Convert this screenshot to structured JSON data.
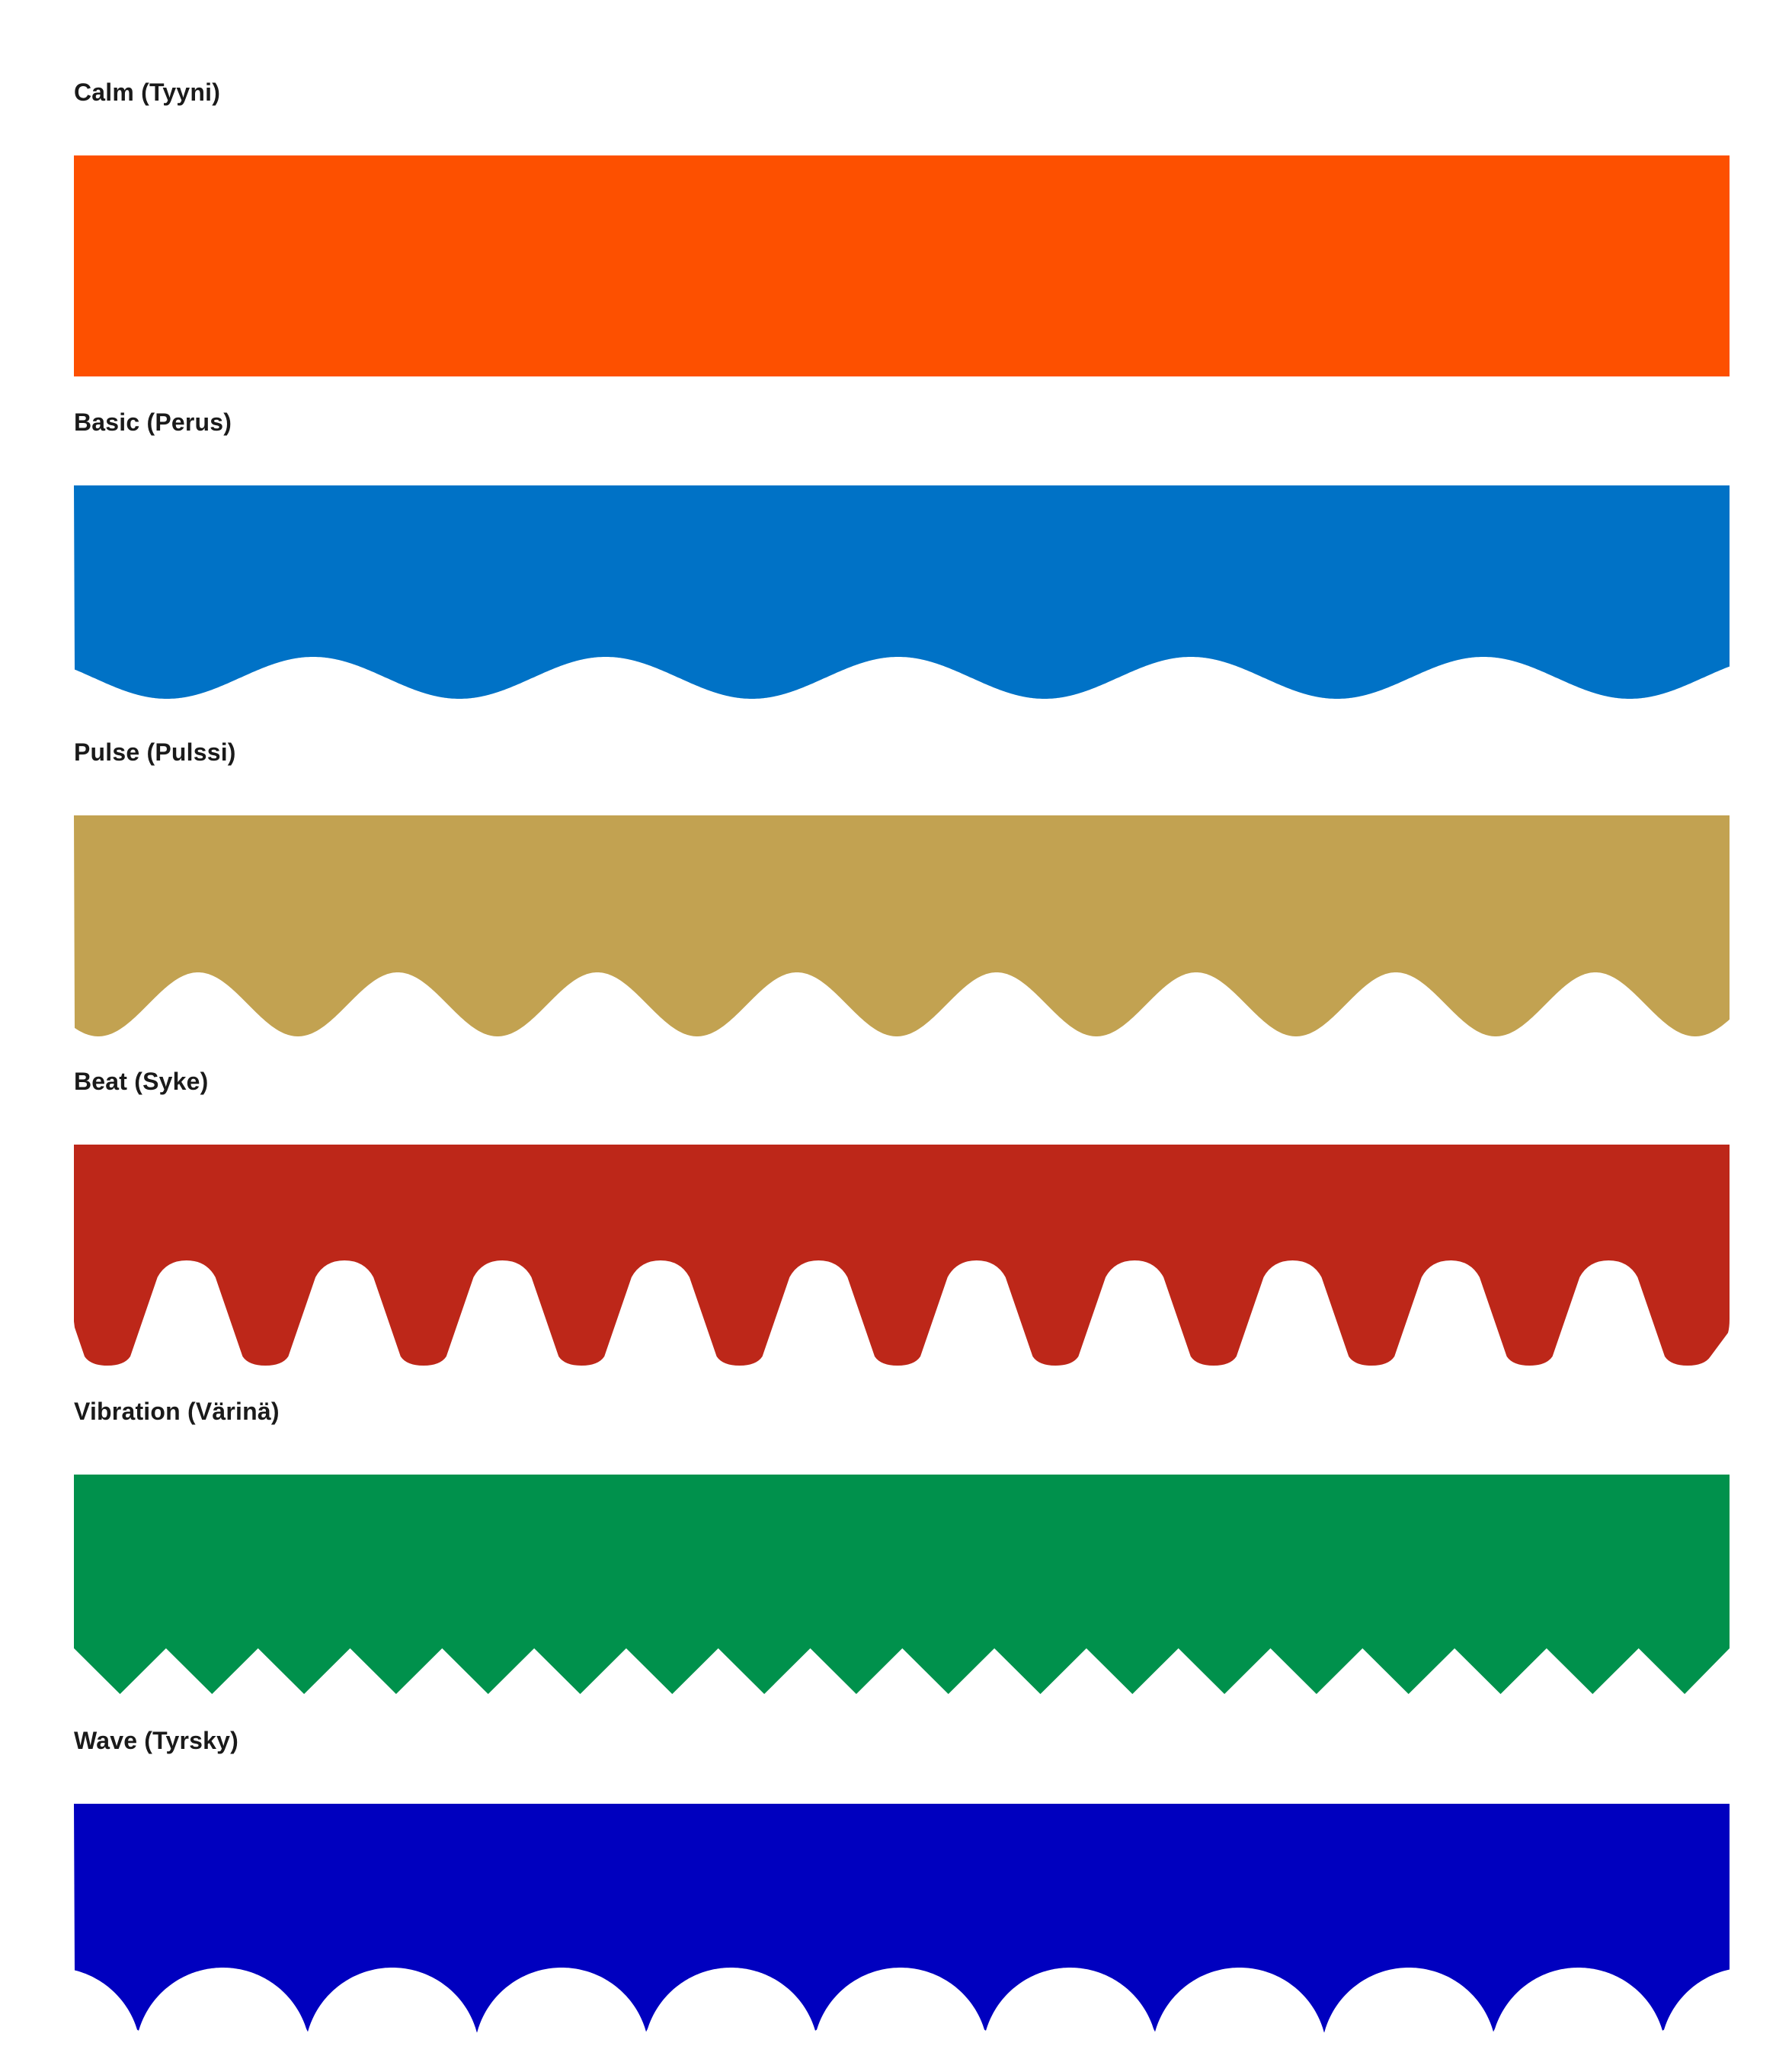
{
  "koro_patterns": [
    {
      "label": "Calm (Tyyni)",
      "color": "#FD5000",
      "shape": "calm"
    },
    {
      "label": "Basic (Perus)",
      "color": "#0072C6",
      "shape": "basic"
    },
    {
      "label": "Pulse (Pulssi)",
      "color": "#C2A251",
      "shape": "pulse"
    },
    {
      "label": "Beat (Syke)",
      "color": "#BD2719",
      "shape": "beat"
    },
    {
      "label": "Vibration (Värinä)",
      "color": "#00914C",
      "shape": "vibration"
    },
    {
      "label": "Wave (Tyrsky)",
      "color": "#0000BF",
      "shape": "wave"
    }
  ]
}
